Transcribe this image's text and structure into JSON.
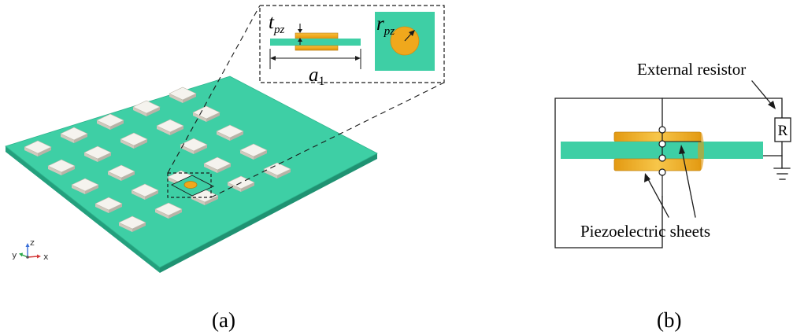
{
  "panel_a": {
    "caption": "(a)",
    "inset": {
      "thickness_symbol": "t",
      "thickness_subscript": "pz",
      "radius_symbol": "r",
      "radius_subscript": "pz",
      "width_symbol": "a",
      "width_subscript": "1"
    },
    "axes": {
      "x": "x",
      "y": "y",
      "z": "z"
    },
    "colors": {
      "plate": "#3ecfa5",
      "plate_edge": "#23a07d",
      "block": "#f3f1ea",
      "piezo": "#f0a81c"
    }
  },
  "panel_b": {
    "caption": "(b)",
    "external_resistor_label": "External resistor",
    "resistor_symbol": "R",
    "piezo_label": "Piezoelectric sheets"
  }
}
